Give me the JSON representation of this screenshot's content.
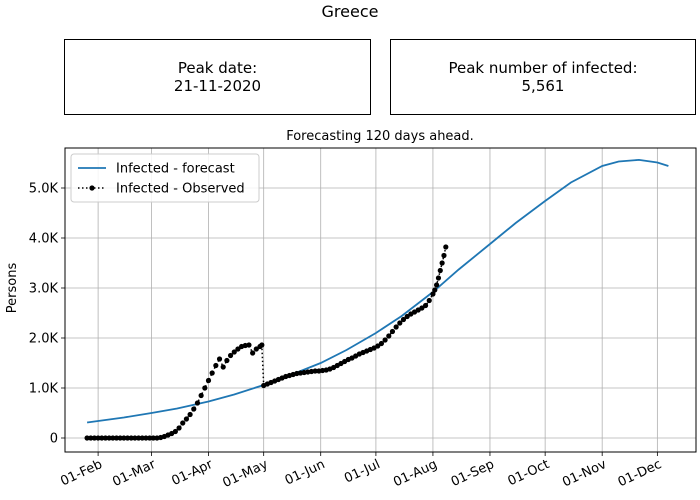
{
  "figure": {
    "title": "Greece"
  },
  "info_boxes": {
    "peak_date_label": "Peak date:",
    "peak_date_value": "21-11-2020",
    "peak_count_label": "Peak number of infected:",
    "peak_count_value": "5,561"
  },
  "chart_data": {
    "type": "line",
    "title": "Forecasting 120 days ahead.",
    "xlabel": "",
    "ylabel": "Persons",
    "x_tick_labels": [
      "01-Feb",
      "01-Mar",
      "01-Apr",
      "01-May",
      "01-Jun",
      "01-Jul",
      "01-Aug",
      "01-Sep",
      "01-Oct",
      "01-Nov",
      "01-Dec"
    ],
    "x_tick_dates": [
      "2020-02-01",
      "2020-03-01",
      "2020-04-01",
      "2020-05-01",
      "2020-06-01",
      "2020-07-01",
      "2020-08-01",
      "2020-09-01",
      "2020-10-01",
      "2020-11-01",
      "2020-12-01"
    ],
    "y_tick_values": [
      0,
      1000,
      2000,
      3000,
      4000,
      5000
    ],
    "y_tick_labels": [
      "0",
      "1.0K",
      "2.0K",
      "3.0K",
      "4.0K",
      "5.0K"
    ],
    "xlim": [
      "2020-01-14",
      "2020-12-22"
    ],
    "ylim": [
      -280,
      5800
    ],
    "grid": true,
    "legend": "top-left",
    "series": [
      {
        "name": "Infected - forecast",
        "style": "solid",
        "color": "#1f77b4",
        "points": [
          [
            "2020-01-26",
            310
          ],
          [
            "2020-02-15",
            410
          ],
          [
            "2020-03-01",
            500
          ],
          [
            "2020-03-15",
            590
          ],
          [
            "2020-04-01",
            730
          ],
          [
            "2020-04-15",
            870
          ],
          [
            "2020-05-01",
            1060
          ],
          [
            "2020-05-15",
            1250
          ],
          [
            "2020-06-01",
            1500
          ],
          [
            "2020-06-15",
            1760
          ],
          [
            "2020-07-01",
            2100
          ],
          [
            "2020-07-15",
            2440
          ],
          [
            "2020-08-01",
            2920
          ],
          [
            "2020-08-15",
            3370
          ],
          [
            "2020-09-01",
            3880
          ],
          [
            "2020-09-15",
            4300
          ],
          [
            "2020-10-01",
            4740
          ],
          [
            "2020-10-15",
            5110
          ],
          [
            "2020-11-01",
            5440
          ],
          [
            "2020-11-10",
            5530
          ],
          [
            "2020-11-21",
            5561
          ],
          [
            "2020-12-01",
            5510
          ],
          [
            "2020-12-07",
            5440
          ]
        ]
      },
      {
        "name": "Infected - Observed",
        "style": "dotted-markers",
        "color": "#000000",
        "points": [
          [
            "2020-01-26",
            0
          ],
          [
            "2020-01-28",
            0
          ],
          [
            "2020-01-30",
            0
          ],
          [
            "2020-02-01",
            0
          ],
          [
            "2020-02-03",
            0
          ],
          [
            "2020-02-05",
            0
          ],
          [
            "2020-02-07",
            0
          ],
          [
            "2020-02-09",
            0
          ],
          [
            "2020-02-11",
            0
          ],
          [
            "2020-02-13",
            0
          ],
          [
            "2020-02-15",
            0
          ],
          [
            "2020-02-17",
            0
          ],
          [
            "2020-02-19",
            0
          ],
          [
            "2020-02-21",
            0
          ],
          [
            "2020-02-23",
            0
          ],
          [
            "2020-02-25",
            0
          ],
          [
            "2020-02-27",
            0
          ],
          [
            "2020-02-29",
            0
          ],
          [
            "2020-03-02",
            0
          ],
          [
            "2020-03-04",
            0
          ],
          [
            "2020-03-06",
            10
          ],
          [
            "2020-03-08",
            30
          ],
          [
            "2020-03-10",
            60
          ],
          [
            "2020-03-12",
            90
          ],
          [
            "2020-03-14",
            130
          ],
          [
            "2020-03-16",
            200
          ],
          [
            "2020-03-18",
            300
          ],
          [
            "2020-03-20",
            380
          ],
          [
            "2020-03-22",
            470
          ],
          [
            "2020-03-24",
            580
          ],
          [
            "2020-03-26",
            700
          ],
          [
            "2020-03-28",
            850
          ],
          [
            "2020-03-30",
            1000
          ],
          [
            "2020-04-01",
            1150
          ],
          [
            "2020-04-03",
            1300
          ],
          [
            "2020-04-05",
            1450
          ],
          [
            "2020-04-07",
            1580
          ],
          [
            "2020-04-09",
            1420
          ],
          [
            "2020-04-11",
            1550
          ],
          [
            "2020-04-13",
            1650
          ],
          [
            "2020-04-15",
            1720
          ],
          [
            "2020-04-17",
            1780
          ],
          [
            "2020-04-19",
            1830
          ],
          [
            "2020-04-21",
            1850
          ],
          [
            "2020-04-23",
            1860
          ],
          [
            "2020-04-25",
            1700
          ],
          [
            "2020-04-27",
            1780
          ],
          [
            "2020-04-29",
            1830
          ],
          [
            "2020-04-30",
            1860
          ],
          [
            "2020-05-01",
            1050
          ],
          [
            "2020-05-03",
            1080
          ],
          [
            "2020-05-05",
            1110
          ],
          [
            "2020-05-07",
            1140
          ],
          [
            "2020-05-09",
            1170
          ],
          [
            "2020-05-11",
            1200
          ],
          [
            "2020-05-13",
            1230
          ],
          [
            "2020-05-15",
            1250
          ],
          [
            "2020-05-17",
            1270
          ],
          [
            "2020-05-19",
            1290
          ],
          [
            "2020-05-21",
            1300
          ],
          [
            "2020-05-23",
            1310
          ],
          [
            "2020-05-25",
            1320
          ],
          [
            "2020-05-27",
            1330
          ],
          [
            "2020-05-29",
            1340
          ],
          [
            "2020-05-31",
            1340
          ],
          [
            "2020-06-02",
            1350
          ],
          [
            "2020-06-04",
            1360
          ],
          [
            "2020-06-06",
            1380
          ],
          [
            "2020-06-08",
            1410
          ],
          [
            "2020-06-10",
            1450
          ],
          [
            "2020-06-12",
            1490
          ],
          [
            "2020-06-14",
            1530
          ],
          [
            "2020-06-16",
            1570
          ],
          [
            "2020-06-18",
            1600
          ],
          [
            "2020-06-20",
            1640
          ],
          [
            "2020-06-22",
            1680
          ],
          [
            "2020-06-24",
            1710
          ],
          [
            "2020-06-26",
            1740
          ],
          [
            "2020-06-28",
            1770
          ],
          [
            "2020-06-30",
            1800
          ],
          [
            "2020-07-02",
            1840
          ],
          [
            "2020-07-04",
            1890
          ],
          [
            "2020-07-06",
            1960
          ],
          [
            "2020-07-08",
            2040
          ],
          [
            "2020-07-10",
            2130
          ],
          [
            "2020-07-12",
            2220
          ],
          [
            "2020-07-14",
            2300
          ],
          [
            "2020-07-16",
            2370
          ],
          [
            "2020-07-18",
            2430
          ],
          [
            "2020-07-20",
            2480
          ],
          [
            "2020-07-22",
            2520
          ],
          [
            "2020-07-24",
            2560
          ],
          [
            "2020-07-26",
            2600
          ],
          [
            "2020-07-28",
            2650
          ],
          [
            "2020-07-30",
            2750
          ],
          [
            "2020-08-01",
            2880
          ],
          [
            "2020-08-02",
            2960
          ],
          [
            "2020-08-03",
            3060
          ],
          [
            "2020-08-04",
            3200
          ],
          [
            "2020-08-05",
            3350
          ],
          [
            "2020-08-06",
            3500
          ],
          [
            "2020-08-07",
            3650
          ],
          [
            "2020-08-08",
            3820
          ]
        ]
      }
    ]
  }
}
